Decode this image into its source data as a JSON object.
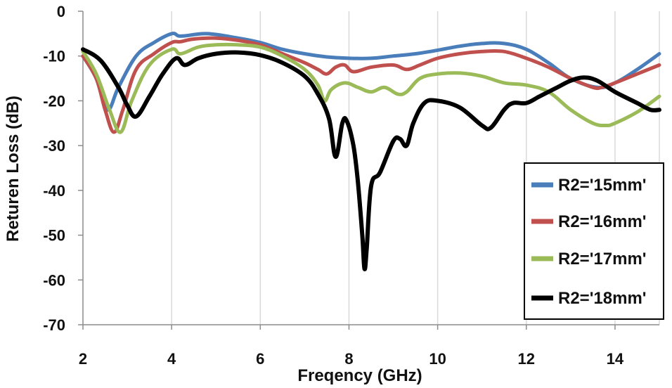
{
  "chart_data": {
    "type": "line",
    "xlabel": "Freqency (GHz)",
    "ylabel": "Returen Loss (dB)",
    "xlim": [
      2,
      15
    ],
    "ylim": [
      -70,
      0
    ],
    "xticks": [
      2,
      4,
      6,
      8,
      10,
      12,
      14
    ],
    "yticks": [
      0,
      -10,
      -20,
      -30,
      -40,
      -50,
      -60,
      -70
    ],
    "grid": "vertical",
    "legend_position": "bottom-right",
    "series": [
      {
        "name": "R2='15mm'",
        "color": "#4a7ebb",
        "x": [
          2.0,
          2.3,
          2.55,
          2.8,
          3.2,
          3.6,
          4.0,
          4.15,
          4.3,
          4.8,
          5.5,
          6.0,
          6.5,
          7.0,
          7.5,
          8.0,
          8.5,
          9.0,
          9.5,
          10.0,
          10.5,
          11.0,
          11.5,
          12.0,
          12.5,
          13.0,
          13.6,
          14.0,
          14.5,
          15.0
        ],
        "y": [
          -10,
          -15,
          -22,
          -17,
          -10,
          -7,
          -5,
          -5.5,
          -5.5,
          -5,
          -6,
          -7,
          -8.5,
          -9.5,
          -10.2,
          -10.5,
          -10.5,
          -10,
          -9.5,
          -8.7,
          -7.8,
          -7.2,
          -7.2,
          -8.5,
          -11.5,
          -15,
          -17,
          -16,
          -13,
          -9.5
        ]
      },
      {
        "name": "R2='16mm'",
        "color": "#c0504d",
        "x": [
          2.0,
          2.3,
          2.5,
          2.7,
          2.9,
          3.2,
          3.6,
          4.0,
          4.2,
          4.5,
          5.0,
          5.5,
          6.0,
          6.5,
          7.0,
          7.3,
          7.5,
          7.7,
          7.9,
          8.1,
          8.5,
          9.0,
          9.3,
          9.6,
          10.0,
          10.5,
          11.0,
          11.5,
          12.0,
          12.5,
          13.0,
          13.5,
          13.7,
          14.0,
          14.5,
          15.0
        ],
        "y": [
          -10,
          -15,
          -22,
          -27,
          -22,
          -13,
          -9.5,
          -7,
          -6.8,
          -6.2,
          -6,
          -6.5,
          -7.5,
          -9.5,
          -11.5,
          -13,
          -14,
          -12.5,
          -12,
          -13.5,
          -12.5,
          -12,
          -13,
          -12,
          -10.5,
          -9.5,
          -9,
          -9,
          -10.5,
          -12.5,
          -15,
          -17,
          -17,
          -16,
          -14,
          -12
        ]
      },
      {
        "name": "R2='17mm'",
        "color": "#9bbb59",
        "x": [
          2.0,
          2.3,
          2.6,
          2.85,
          3.1,
          3.5,
          4.0,
          4.2,
          4.6,
          5.0,
          5.5,
          6.0,
          6.5,
          7.0,
          7.3,
          7.45,
          7.6,
          7.9,
          8.2,
          8.5,
          8.8,
          9.1,
          9.3,
          9.6,
          10.0,
          10.5,
          11.0,
          11.5,
          12.0,
          12.5,
          13.0,
          13.5,
          13.8,
          14.0,
          14.5,
          15.0
        ],
        "y": [
          -9,
          -14,
          -22,
          -27,
          -20,
          -12,
          -8.5,
          -9.5,
          -8,
          -7.5,
          -7.5,
          -8,
          -10,
          -13,
          -16.5,
          -20,
          -17.5,
          -16,
          -17,
          -18,
          -17,
          -18.5,
          -18,
          -15,
          -14,
          -13.8,
          -14.5,
          -16,
          -16.5,
          -18,
          -22,
          -25,
          -25.5,
          -25,
          -22.5,
          -19
        ]
      },
      {
        "name": "R2='18mm'",
        "color": "#000000",
        "x": [
          2.0,
          2.4,
          2.8,
          3.0,
          3.2,
          3.5,
          3.8,
          4.1,
          4.3,
          4.6,
          5.0,
          5.5,
          6.0,
          6.5,
          7.0,
          7.3,
          7.55,
          7.7,
          7.85,
          7.95,
          8.1,
          8.2,
          8.3,
          8.35,
          8.4,
          8.5,
          8.7,
          9.0,
          9.15,
          9.3,
          9.45,
          9.7,
          10.0,
          10.5,
          11.0,
          11.2,
          11.5,
          11.7,
          12.0,
          12.3,
          12.7,
          13.0,
          13.3,
          13.6,
          14.0,
          14.5,
          14.8,
          15.0
        ],
        "y": [
          -8.5,
          -11,
          -17,
          -21,
          -23.5,
          -19,
          -14,
          -10.5,
          -12,
          -10.5,
          -9.5,
          -9.2,
          -9.8,
          -11.5,
          -14.5,
          -18.5,
          -24,
          -32.5,
          -25,
          -24.5,
          -30,
          -38,
          -50,
          -57.5,
          -53,
          -39,
          -36,
          -29,
          -28.5,
          -30,
          -25,
          -20.5,
          -20,
          -21.5,
          -25.5,
          -26,
          -22,
          -20.5,
          -20.5,
          -19,
          -17,
          -15.5,
          -14.8,
          -15.5,
          -18,
          -20.5,
          -22,
          -22
        ]
      }
    ]
  }
}
